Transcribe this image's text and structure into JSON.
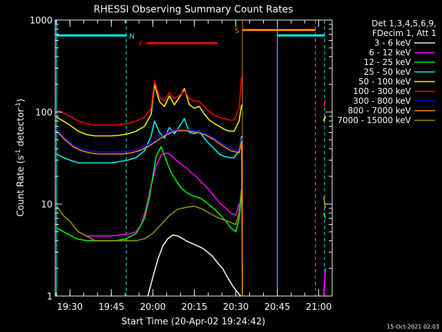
{
  "chart_data": {
    "type": "line",
    "title": "RHESSI Observing Summary Count Rates",
    "xlabel": "Start Time (20-Apr-02 19:24:42)",
    "ylabel_main": "Count Rate (s",
    "ylabel_sup1": "-1",
    "ylabel_mid": " detector",
    "ylabel_sup2": "-1",
    "ylabel_end": ")",
    "footer": "15-Oct-2021 02:03",
    "xlim": [
      19.4117,
      21.081
    ],
    "ylim": [
      1,
      1000
    ],
    "yscale": "log",
    "x_ticks": [
      {
        "value": 19.5,
        "label": "19:30"
      },
      {
        "value": 19.75,
        "label": "19:45"
      },
      {
        "value": 20.0,
        "label": "20:00"
      },
      {
        "value": 20.25,
        "label": "20:15"
      },
      {
        "value": 20.5,
        "label": "20:30"
      },
      {
        "value": 20.75,
        "label": "20:45"
      },
      {
        "value": 21.0,
        "label": "21:00"
      }
    ],
    "y_ticks": [
      {
        "value": 1,
        "label": "1"
      },
      {
        "value": 10,
        "label": "10"
      },
      {
        "value": 100,
        "label": "100"
      },
      {
        "value": 1000,
        "label": "1000"
      }
    ],
    "legend": {
      "header": [
        "Det 1,3,4,5,6,9,",
        "FDecim 1, Att 1"
      ],
      "position": "right"
    },
    "state_lines": [
      {
        "x": 19.42,
        "color": "#00ffff",
        "dash": false
      },
      {
        "x": 19.84,
        "color": "#00ffff",
        "dash": true
      },
      {
        "x": 20.54,
        "color": "#ff8c00",
        "dash": false
      },
      {
        "x": 20.75,
        "color": "#00ffff",
        "dash": false
      },
      {
        "x": 20.98,
        "color": "#ff8c00",
        "dash": true
      },
      {
        "x": 21.035,
        "color": "#00ffff",
        "dash": true
      }
    ],
    "bars": [
      {
        "label": "N",
        "color": "#00ffff",
        "x_start": 19.42,
        "x_end": 19.84,
        "y": 680
      },
      {
        "label": "F",
        "color": "#ff0000",
        "x_start": 19.96,
        "x_end": 20.39,
        "y": 560
      },
      {
        "label": "S",
        "color": "#ff8c00",
        "x_start": 20.54,
        "x_end": 20.98,
        "y": 780
      },
      {
        "label": "",
        "color": "#00ffff",
        "x_start": 20.75,
        "x_end": 21.035,
        "y": 680
      }
    ],
    "series": [
      {
        "name": "3 - 6 keV",
        "color": "#ffffff",
        "x": [
          19.97,
          20.0,
          20.03,
          20.06,
          20.09,
          20.12,
          20.15,
          20.18,
          20.21,
          20.24,
          20.27,
          20.3,
          20.33,
          20.36,
          20.39,
          20.42,
          20.45,
          20.48,
          20.51,
          20.53
        ],
        "y": [
          1,
          1.6,
          2.5,
          3.5,
          4.2,
          4.6,
          4.5,
          4.2,
          3.9,
          3.7,
          3.5,
          3.3,
          3.0,
          2.7,
          2.3,
          2.0,
          1.6,
          1.3,
          1.1,
          1
        ]
      },
      {
        "name": "6 - 12 keV",
        "color": "#ff00ff",
        "x": [
          19.6,
          19.65,
          19.7,
          19.75,
          19.8,
          19.85,
          19.9,
          19.93,
          19.96,
          19.99,
          20.02,
          20.05,
          20.08,
          20.11,
          20.14,
          20.17,
          20.2,
          20.23,
          20.26,
          20.29,
          20.32,
          20.35,
          20.38,
          20.41,
          20.44,
          20.47,
          20.5,
          20.52
        ],
        "y": [
          4.5,
          4.5,
          4.5,
          4.5,
          4.6,
          4.7,
          5.0,
          6.0,
          9.0,
          16,
          26,
          34,
          36,
          34,
          30,
          27,
          25,
          22,
          20,
          17.5,
          15.5,
          13.5,
          11.5,
          10,
          9,
          8,
          7.5,
          10
        ]
      },
      {
        "name": "12 - 25 keV",
        "color": "#00ff00",
        "x": [
          19.42,
          19.48,
          19.54,
          19.6,
          19.66,
          19.72,
          19.78,
          19.84,
          19.9,
          19.95,
          19.98,
          20.0,
          20.02,
          20.05,
          20.08,
          20.11,
          20.14,
          20.17,
          20.2,
          20.23,
          20.26,
          20.29,
          20.32,
          20.35,
          20.38,
          20.41,
          20.44,
          20.47,
          20.5,
          20.52,
          20.535
        ],
        "y": [
          5.5,
          4.8,
          4.2,
          4.0,
          4.0,
          4.0,
          4.0,
          4.2,
          4.8,
          7,
          12,
          20,
          33,
          42,
          30,
          22,
          18,
          15,
          13.5,
          12.5,
          12,
          11.5,
          10.5,
          9.5,
          8.5,
          7.5,
          6.5,
          5.5,
          5.0,
          7,
          13
        ]
      },
      {
        "name": "25 - 50 keV",
        "color": "#00ffff",
        "x": [
          19.42,
          19.46,
          19.5,
          19.55,
          19.6,
          19.65,
          19.7,
          19.75,
          19.8,
          19.85,
          19.9,
          19.95,
          19.99,
          20.01,
          20.04,
          20.07,
          20.1,
          20.13,
          20.16,
          20.19,
          20.22,
          20.25,
          20.28,
          20.31,
          20.34,
          20.37,
          20.4,
          20.43,
          20.46,
          20.49,
          20.52,
          20.535
        ],
        "y": [
          35,
          32,
          30,
          28,
          28,
          28,
          28,
          28,
          29,
          30,
          32,
          38,
          55,
          80,
          60,
          52,
          68,
          58,
          70,
          85,
          60,
          58,
          62,
          52,
          45,
          40,
          35,
          33,
          32,
          32,
          38,
          55
        ]
      },
      {
        "name": "50 - 100 keV",
        "color": "#ffff00",
        "x": [
          19.42,
          19.46,
          19.5,
          19.55,
          19.6,
          19.65,
          19.7,
          19.75,
          19.8,
          19.85,
          19.9,
          19.95,
          19.99,
          20.01,
          20.04,
          20.07,
          20.1,
          20.13,
          20.16,
          20.19,
          20.22,
          20.25,
          20.28,
          20.31,
          20.34,
          20.37,
          20.4,
          20.43,
          20.46,
          20.49,
          20.52,
          20.535
        ],
        "y": [
          88,
          80,
          72,
          62,
          57,
          55,
          55,
          55,
          56,
          58,
          62,
          70,
          95,
          200,
          130,
          115,
          150,
          120,
          145,
          180,
          120,
          110,
          115,
          95,
          82,
          75,
          70,
          65,
          62,
          62,
          80,
          120
        ]
      },
      {
        "name": "100 - 300 keV",
        "color": "#ff0000",
        "x": [
          19.42,
          19.46,
          19.5,
          19.55,
          19.6,
          19.65,
          19.7,
          19.75,
          19.8,
          19.85,
          19.9,
          19.95,
          19.99,
          20.01,
          20.04,
          20.07,
          20.1,
          20.13,
          20.16,
          20.19,
          20.22,
          20.25,
          20.28,
          20.31,
          20.34,
          20.37,
          20.4,
          20.43,
          20.46,
          20.49,
          20.52,
          20.535
        ],
        "y": [
          105,
          98,
          90,
          80,
          75,
          72,
          72,
          72,
          73,
          75,
          80,
          88,
          110,
          220,
          145,
          132,
          162,
          140,
          152,
          170,
          140,
          132,
          130,
          115,
          102,
          93,
          88,
          85,
          82,
          82,
          110,
          240
        ]
      },
      {
        "name": "300 - 800 keV",
        "color": "#0000ff",
        "x": [
          19.42,
          19.47,
          19.52,
          19.57,
          19.62,
          19.67,
          19.72,
          19.77,
          19.82,
          19.87,
          19.92,
          19.97,
          20.02,
          20.07,
          20.12,
          20.17,
          20.22,
          20.27,
          20.32,
          20.37,
          20.42,
          20.47,
          20.52,
          20.535
        ],
        "y": [
          65,
          52,
          44,
          40,
          38,
          37,
          37,
          37,
          37,
          38,
          40,
          44,
          50,
          57,
          63,
          65,
          64,
          62,
          58,
          52,
          45,
          40,
          38,
          52
        ]
      },
      {
        "name": "800 - 7000 keV",
        "color": "#ff8c00",
        "x": [
          19.42,
          19.47,
          19.52,
          19.57,
          19.62,
          19.67,
          19.72,
          19.77,
          19.82,
          19.87,
          19.92,
          19.97,
          20.02,
          20.07,
          20.12,
          20.17,
          20.22,
          20.27,
          20.32,
          20.37,
          20.42,
          20.47,
          20.52,
          20.535,
          20.54
        ],
        "y": [
          62,
          50,
          42,
          38,
          36,
          35,
          35,
          35,
          35,
          36,
          38,
          42,
          48,
          55,
          61,
          63,
          62,
          60,
          56,
          50,
          43,
          38,
          36,
          48,
          1
        ]
      },
      {
        "name": "7000 - 15000 keV",
        "color": "#9a9a00",
        "x": [
          19.42,
          19.46,
          19.5,
          19.55,
          19.6,
          19.65,
          19.7,
          19.75,
          19.8,
          19.85,
          19.9,
          19.95,
          20.0,
          20.05,
          20.1,
          20.15,
          20.2,
          20.25,
          20.3,
          20.35,
          20.4,
          20.45,
          20.5,
          20.52,
          20.535
        ],
        "y": [
          9.5,
          7.5,
          6.5,
          5.0,
          4.5,
          4.0,
          4.0,
          4.0,
          4.0,
          4.0,
          4.0,
          4.2,
          4.8,
          6.0,
          7.5,
          8.8,
          9.2,
          9.5,
          8.8,
          7.8,
          7.0,
          6.5,
          6.0,
          8.0,
          15
        ]
      }
    ],
    "right_fragments": [
      {
        "color": "#ff0000",
        "x": [
          21.03,
          21.04
        ],
        "y": [
          115,
          135
        ]
      },
      {
        "color": "#ffff00",
        "x": [
          21.03,
          21.04
        ],
        "y": [
          80,
          90
        ]
      },
      {
        "color": "#00ff00",
        "x": [
          21.03,
          21.04
        ],
        "y": [
          8,
          7
        ]
      },
      {
        "color": "#9a9a00",
        "x": [
          21.03,
          21.04
        ],
        "y": [
          12,
          9
        ]
      },
      {
        "color": "#ff00ff",
        "x": [
          21.03,
          21.04
        ],
        "y": [
          1,
          2
        ]
      }
    ]
  }
}
